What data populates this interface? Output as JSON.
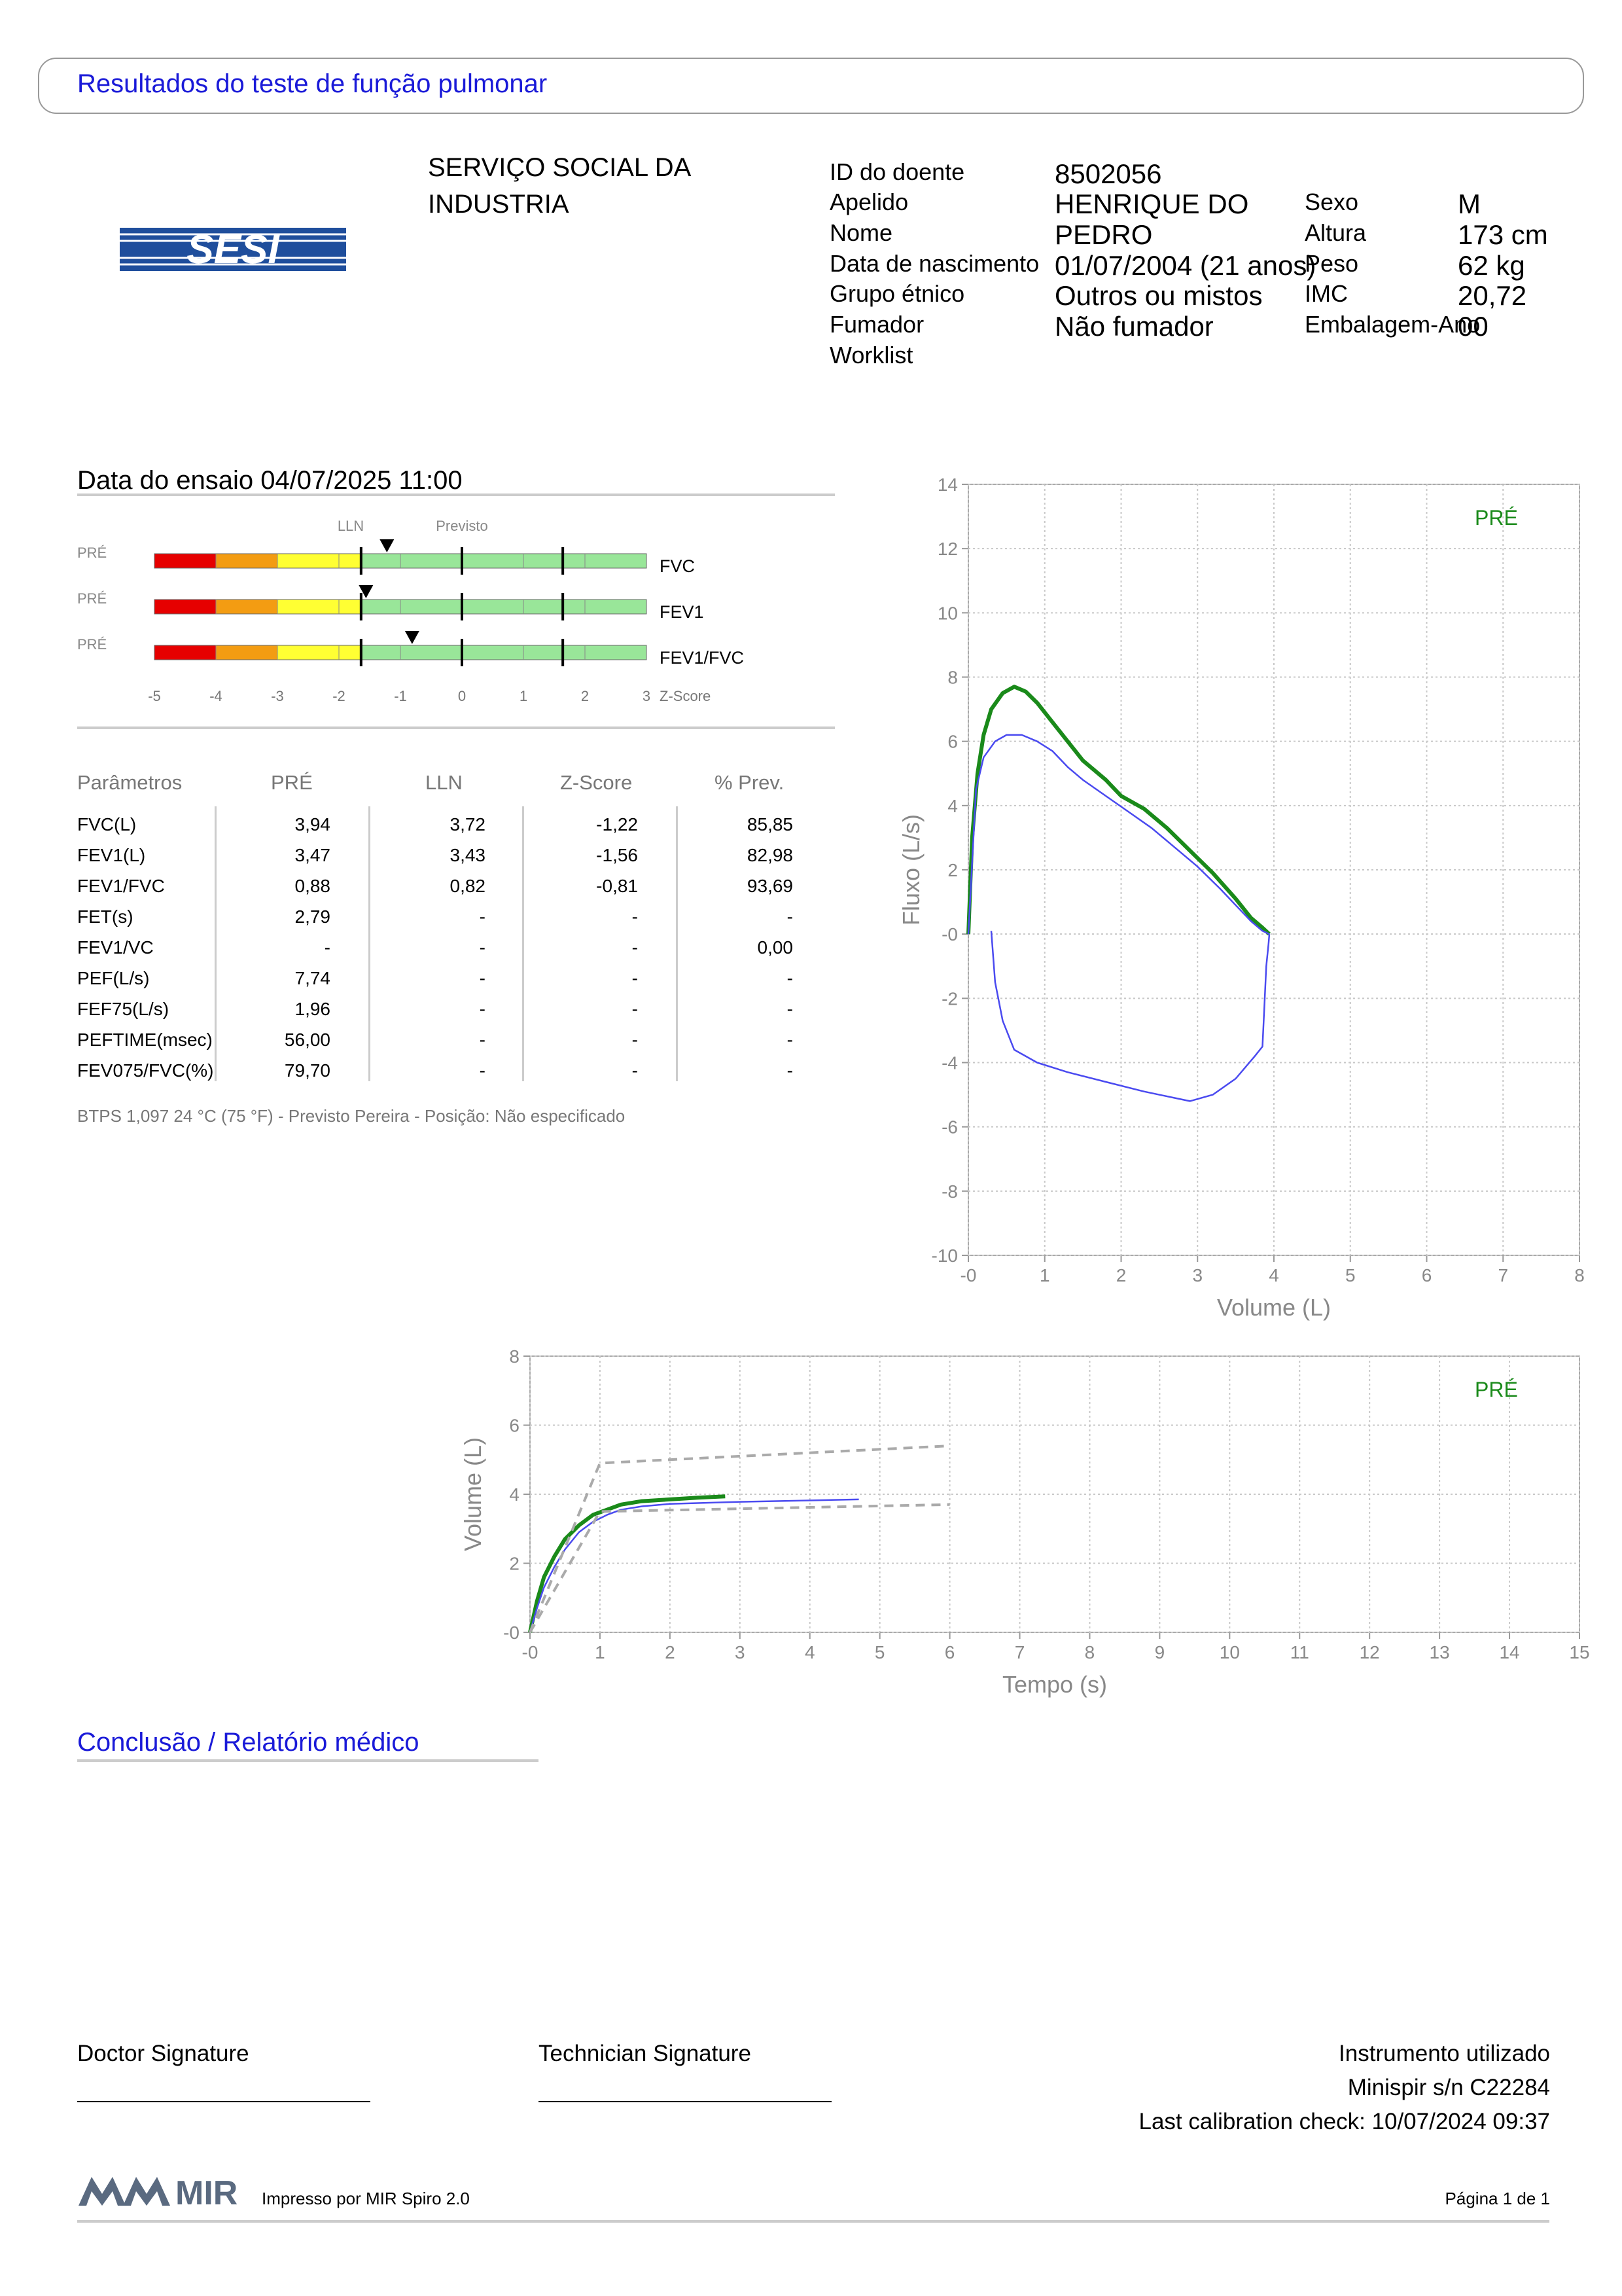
{
  "header": {
    "title": "Resultados do teste de função pulmonar"
  },
  "organization": {
    "logo_text": "SESI",
    "name_line1": "SERVIÇO SOCIAL DA",
    "name_line2": "INDUSTRIA"
  },
  "patient": {
    "id_label": "ID do doente",
    "id_value": "8502056",
    "surname_label": "Apelido",
    "surname_value": "HENRIQUE DO",
    "name_label": "Nome",
    "name_value": "PEDRO",
    "dob_label": "Data de nascimento",
    "dob_value": "01/07/2004 (21 anos)",
    "ethnic_label": "Grupo étnico",
    "ethnic_value": "Outros ou mistos",
    "smoker_label": "Fumador",
    "smoker_value": "Não fumador",
    "worklist_label": "Worklist",
    "sex_label": "Sexo",
    "sex_value": "M",
    "height_label": "Altura",
    "height_value": "173 cm",
    "weight_label": "Peso",
    "weight_value": "62 kg",
    "bmi_label": "IMC",
    "bmi_value": "20,72",
    "packyears_label": "Embalagem-Ano",
    "packyears_value": "00"
  },
  "test": {
    "date": "Data do ensaio 04/07/2025 11:00"
  },
  "zscore": {
    "lln_label": "LLN",
    "pred_label": "Previsto",
    "axis_label": "Z-Score",
    "ticks": [
      "-5",
      "-4",
      "-3",
      "-2",
      "-1",
      "0",
      "1",
      "2",
      "3"
    ],
    "colors": [
      "#e60000",
      "#f39c12",
      "#ffff33",
      "#99e699"
    ],
    "rows": [
      {
        "tag": "PRÉ",
        "name": "FVC",
        "z": -1.22
      },
      {
        "tag": "PRÉ",
        "name": "FEV1",
        "z": -1.56
      },
      {
        "tag": "PRÉ",
        "name": "FEV1/FVC",
        "z": -0.81
      }
    ]
  },
  "params": {
    "headers": [
      "Parâmetros",
      "PRÉ",
      "LLN",
      "Z-Score",
      "% Prev."
    ],
    "rows": [
      [
        "FVC(L)",
        "3,94",
        "3,72",
        "-1,22",
        "85,85"
      ],
      [
        "FEV1(L)",
        "3,47",
        "3,43",
        "-1,56",
        "82,98"
      ],
      [
        "FEV1/FVC",
        "0,88",
        "0,82",
        "-0,81",
        "93,69"
      ],
      [
        "FET(s)",
        "2,79",
        "-",
        "-",
        "-"
      ],
      [
        "FEV1/VC",
        "-",
        "-",
        "-",
        "0,00"
      ],
      [
        "PEF(L/s)",
        "7,74",
        "-",
        "-",
        "-"
      ],
      [
        "FEF75(L/s)",
        "1,96",
        "-",
        "-",
        "-"
      ],
      [
        "PEFTIME(msec)",
        "56,00",
        "-",
        "-",
        "-"
      ],
      [
        "FEV075/FVC(%)",
        "79,70",
        "-",
        "-",
        "-"
      ]
    ],
    "footnote": "BTPS 1,097 24 °C (75 °F) - Previsto Pereira - Posição: Não especificado"
  },
  "chart_data": [
    {
      "type": "line",
      "title": "",
      "xlabel": "Volume (L)",
      "ylabel": "Fluxo (L/s)",
      "xlim": [
        0,
        8
      ],
      "ylim": [
        -10,
        14
      ],
      "xticks": [
        "-0",
        "1",
        "2",
        "3",
        "4",
        "5",
        "6",
        "7",
        "8"
      ],
      "yticks": [
        "-10",
        "-8",
        "-6",
        "-4",
        "-2",
        "-0",
        "2",
        "4",
        "6",
        "8",
        "10",
        "12",
        "14"
      ],
      "grid": true,
      "legend_text": "PRÉ",
      "legend_color": "#1a8a1a",
      "series": [
        {
          "color": "#1a8a1a",
          "x": [
            0,
            0.05,
            0.12,
            0.2,
            0.3,
            0.45,
            0.6,
            0.75,
            0.9,
            1.1,
            1.3,
            1.5,
            1.8,
            2.0,
            2.3,
            2.6,
            2.9,
            3.2,
            3.5,
            3.7,
            3.85,
            3.94
          ],
          "y": [
            0,
            3.0,
            5.0,
            6.2,
            7.0,
            7.5,
            7.7,
            7.55,
            7.2,
            6.6,
            6.0,
            5.4,
            4.8,
            4.3,
            3.9,
            3.3,
            2.6,
            1.9,
            1.1,
            0.5,
            0.2,
            0
          ]
        },
        {
          "color": "#4a4af0",
          "x": [
            0,
            0.1,
            0.2,
            0.35,
            0.5,
            0.7,
            0.9,
            1.1,
            1.3,
            1.5,
            1.8,
            2.1,
            2.4,
            2.7,
            3.0,
            3.3,
            3.5,
            3.7,
            3.85,
            3.94
          ],
          "y": [
            0,
            4.5,
            5.5,
            6.0,
            6.2,
            6.2,
            6.0,
            5.7,
            5.2,
            4.8,
            4.3,
            3.8,
            3.3,
            2.7,
            2.1,
            1.4,
            0.9,
            0.4,
            0.1,
            0
          ]
        },
        {
          "color": "#4a4af0",
          "x": [
            0.3,
            0.35,
            0.45,
            0.6,
            0.9,
            1.3,
            1.8,
            2.3,
            2.7,
            2.9,
            3.2,
            3.5,
            3.75,
            3.85,
            3.88,
            3.9,
            3.93,
            3.94
          ],
          "y": [
            0.1,
            -1.5,
            -2.7,
            -3.6,
            -4.0,
            -4.3,
            -4.6,
            -4.9,
            -5.1,
            -5.2,
            -5.0,
            -4.5,
            -3.8,
            -3.5,
            -2.0,
            -1.0,
            -0.3,
            0
          ]
        }
      ]
    },
    {
      "type": "line",
      "title": "",
      "xlabel": "Tempo (s)",
      "ylabel": "Volume (L)",
      "xlim": [
        0,
        15
      ],
      "ylim": [
        0,
        8
      ],
      "xticks": [
        "-0",
        "1",
        "2",
        "3",
        "4",
        "5",
        "6",
        "7",
        "8",
        "9",
        "10",
        "11",
        "12",
        "13",
        "14",
        "15"
      ],
      "yticks": [
        "-0",
        "2",
        "4",
        "6",
        "8"
      ],
      "grid": true,
      "legend_text": "PRÉ",
      "legend_color": "#1a8a1a",
      "series": [
        {
          "color": "#1a8a1a",
          "x": [
            0,
            0.1,
            0.2,
            0.35,
            0.5,
            0.7,
            0.9,
            1.1,
            1.3,
            1.6,
            2.0,
            2.4,
            2.79
          ],
          "y": [
            0,
            0.9,
            1.6,
            2.2,
            2.7,
            3.1,
            3.4,
            3.55,
            3.7,
            3.8,
            3.85,
            3.9,
            3.94
          ]
        },
        {
          "color": "#4a4af0",
          "x": [
            0,
            0.1,
            0.2,
            0.35,
            0.5,
            0.7,
            0.9,
            1.1,
            1.3,
            1.6,
            2.0,
            3.0,
            4.0,
            4.7
          ],
          "y": [
            0,
            0.7,
            1.3,
            1.9,
            2.4,
            2.9,
            3.2,
            3.4,
            3.55,
            3.65,
            3.72,
            3.78,
            3.82,
            3.85
          ]
        },
        {
          "color": "#aaaaaa",
          "dash": true,
          "x": [
            0,
            1,
            6
          ],
          "y": [
            0,
            4.9,
            5.4
          ]
        },
        {
          "color": "#aaaaaa",
          "dash": true,
          "x": [
            0,
            1,
            6
          ],
          "y": [
            0,
            3.5,
            3.7
          ]
        }
      ]
    }
  ],
  "conclusion": {
    "title": "Conclusão / Relatório médico"
  },
  "signatures": {
    "doctor": "Doctor Signature",
    "technician": "Technician Signature"
  },
  "instrument": {
    "title": "Instrumento utilizado",
    "model": "Minispir s/n C22284",
    "calibration": "Last calibration check: 10/07/2024 09:37"
  },
  "footer": {
    "printed_by": "Impresso por MIR Spiro 2.0",
    "page": "Página 1 de 1",
    "brand": "MIR"
  }
}
